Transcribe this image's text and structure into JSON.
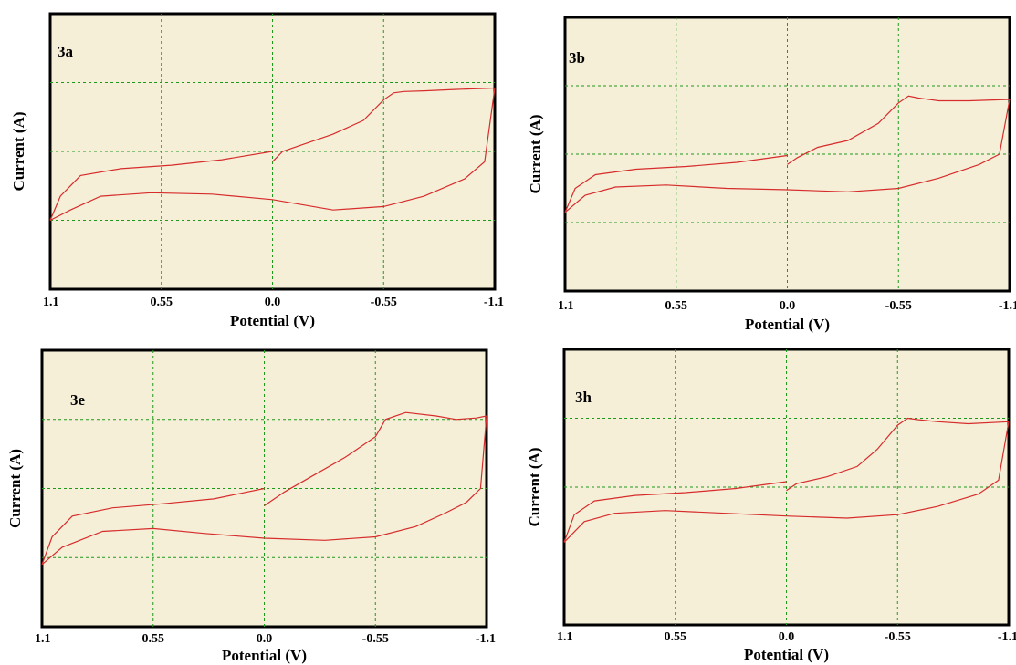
{
  "chart_data": [
    {
      "type": "line",
      "panel_label": "3a",
      "xlabel": "Potential (V)",
      "ylabel": "Current (A)",
      "xtick_labels": [
        "1.1",
        "0.55",
        "0.0",
        "-0.55",
        "-1.1"
      ],
      "xlim": [
        1.1,
        -1.1
      ],
      "ylim": [
        0,
        4
      ],
      "grid": true,
      "series": [
        {
          "x": [
            0.0,
            -0.05,
            -0.15,
            -0.3,
            -0.45,
            -0.55,
            -0.6,
            -0.65,
            -0.75,
            -0.9,
            -1.1
          ],
          "y": [
            1.85,
            2.0,
            2.1,
            2.25,
            2.45,
            2.75,
            2.85,
            2.87,
            2.88,
            2.9,
            2.92
          ]
        },
        {
          "x": [
            -1.1,
            -1.05,
            -0.95,
            -0.75,
            -0.55,
            -0.3,
            0.0,
            0.3,
            0.6,
            0.85,
            1.0,
            1.1
          ],
          "y": [
            2.92,
            1.85,
            1.6,
            1.35,
            1.2,
            1.15,
            1.3,
            1.38,
            1.4,
            1.35,
            1.15,
            1.0
          ]
        },
        {
          "x": [
            1.1,
            1.05,
            0.95,
            0.75,
            0.5,
            0.25,
            0.0
          ],
          "y": [
            1.0,
            1.35,
            1.65,
            1.75,
            1.8,
            1.88,
            2.0
          ]
        }
      ]
    },
    {
      "type": "line",
      "panel_label": "3b",
      "xlabel": "Potential (V)",
      "ylabel": "Current (A)",
      "xtick_labels": [
        "1.1",
        "0.55",
        "0.0",
        "-0.55",
        "-1.1"
      ],
      "xlim": [
        1.1,
        -1.1
      ],
      "ylim": [
        0,
        4
      ],
      "grid": true,
      "series": [
        {
          "x": [
            0.0,
            -0.05,
            -0.15,
            -0.3,
            -0.45,
            -0.55,
            -0.6,
            -0.65,
            -0.75,
            -0.9,
            -1.1
          ],
          "y": [
            1.85,
            1.95,
            2.1,
            2.2,
            2.45,
            2.75,
            2.85,
            2.82,
            2.78,
            2.78,
            2.8
          ]
        },
        {
          "x": [
            -1.1,
            -1.05,
            -0.95,
            -0.75,
            -0.55,
            -0.3,
            0.0,
            0.3,
            0.6,
            0.85,
            1.0,
            1.1
          ],
          "y": [
            2.8,
            2.0,
            1.85,
            1.65,
            1.5,
            1.45,
            1.48,
            1.5,
            1.55,
            1.52,
            1.4,
            1.15
          ]
        },
        {
          "x": [
            1.1,
            1.05,
            0.95,
            0.75,
            0.5,
            0.25,
            0.0
          ],
          "y": [
            1.15,
            1.5,
            1.7,
            1.78,
            1.82,
            1.88,
            1.98
          ]
        }
      ]
    },
    {
      "type": "line",
      "panel_label": "3e",
      "xlabel": "Potential (V)",
      "ylabel": "Current (A)",
      "xtick_labels": [
        "1.1",
        "0.55",
        "0.0",
        "-0.55",
        "-1.1"
      ],
      "xlim": [
        1.1,
        -1.1
      ],
      "ylim": [
        0,
        4
      ],
      "grid": true,
      "series": [
        {
          "x": [
            0.0,
            -0.1,
            -0.25,
            -0.4,
            -0.55,
            -0.6,
            -0.7,
            -0.85,
            -0.95,
            -1.05,
            -1.1
          ],
          "y": [
            1.75,
            1.95,
            2.2,
            2.45,
            2.75,
            3.0,
            3.1,
            3.05,
            3.0,
            3.02,
            3.05
          ]
        },
        {
          "x": [
            -1.1,
            -1.07,
            -1.0,
            -0.9,
            -0.75,
            -0.55,
            -0.3,
            0.0,
            0.3,
            0.55,
            0.8,
            1.0,
            1.1
          ],
          "y": [
            3.05,
            2.0,
            1.8,
            1.65,
            1.45,
            1.3,
            1.25,
            1.28,
            1.35,
            1.42,
            1.38,
            1.15,
            0.9
          ]
        },
        {
          "x": [
            1.1,
            1.05,
            0.95,
            0.75,
            0.5,
            0.25,
            0.0
          ],
          "y": [
            0.9,
            1.3,
            1.6,
            1.72,
            1.78,
            1.85,
            2.0
          ]
        }
      ]
    },
    {
      "type": "line",
      "panel_label": "3h",
      "xlabel": "Potential (V)",
      "ylabel": "Current (A)",
      "xtick_labels": [
        "1.1",
        "0.55",
        "0.0",
        "-0.55",
        "-1.1"
      ],
      "xlim": [
        1.1,
        -1.1
      ],
      "ylim": [
        0,
        4
      ],
      "grid": true,
      "series": [
        {
          "x": [
            0.0,
            -0.05,
            -0.2,
            -0.35,
            -0.45,
            -0.55,
            -0.6,
            -0.65,
            -0.75,
            -0.9,
            -1.1
          ],
          "y": [
            1.95,
            2.05,
            2.15,
            2.3,
            2.55,
            2.9,
            3.0,
            2.98,
            2.95,
            2.92,
            2.95
          ]
        },
        {
          "x": [
            -1.1,
            -1.05,
            -0.95,
            -0.75,
            -0.55,
            -0.3,
            0.0,
            0.3,
            0.6,
            0.85,
            1.0,
            1.1
          ],
          "y": [
            2.95,
            2.1,
            1.9,
            1.72,
            1.6,
            1.55,
            1.58,
            1.62,
            1.66,
            1.62,
            1.5,
            1.2
          ]
        },
        {
          "x": [
            1.1,
            1.05,
            0.95,
            0.75,
            0.5,
            0.25,
            0.0
          ],
          "y": [
            1.2,
            1.6,
            1.8,
            1.88,
            1.92,
            1.98,
            2.08
          ]
        }
      ]
    }
  ]
}
